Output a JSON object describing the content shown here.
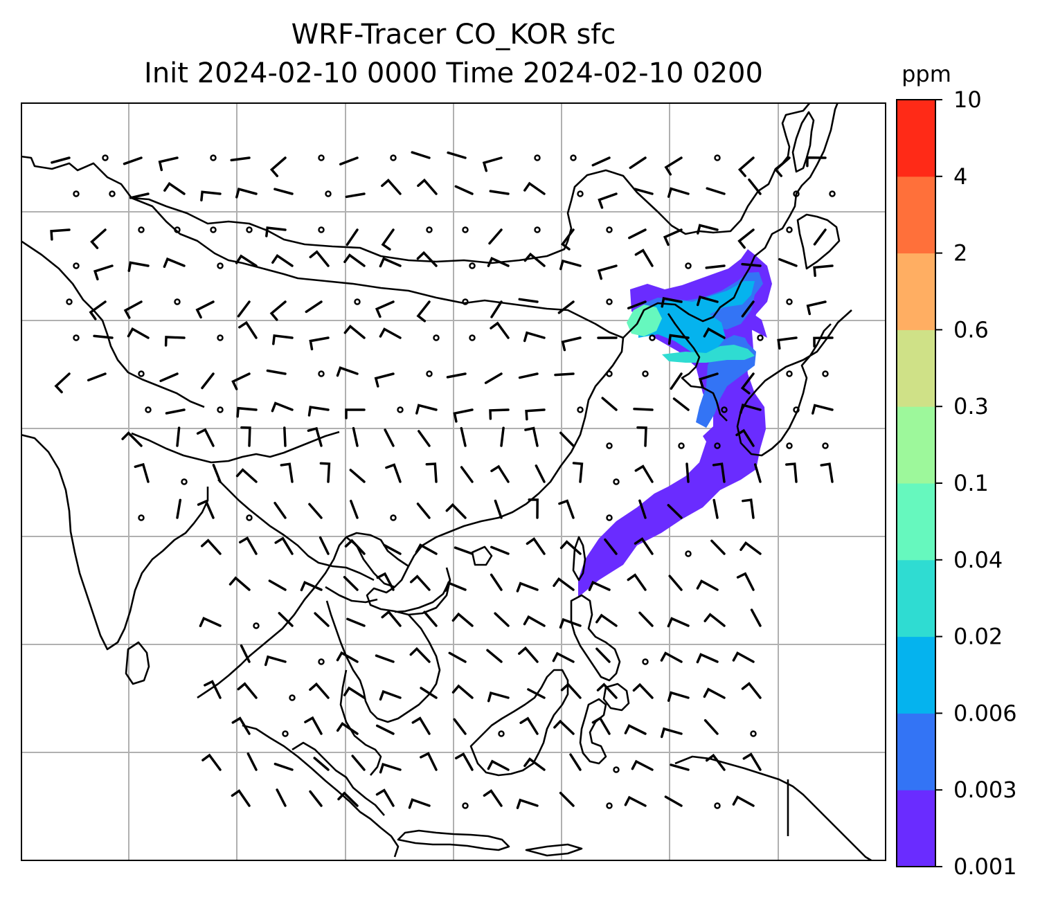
{
  "title": {
    "line1": "WRF-Tracer CO_KOR sfc",
    "line2": "Init 2024-02-10 0000 Time 2024-02-10 0200"
  },
  "colorbar": {
    "unit": "ppm",
    "ticks": [
      "0.001",
      "0.003",
      "0.006",
      "0.02",
      "0.04",
      "0.1",
      "0.3",
      "0.6",
      "2",
      "4",
      "10"
    ],
    "colors": [
      "#6a2cff",
      "#3374f5",
      "#05b3ee",
      "#2fdcd2",
      "#66f8be",
      "#9df89b",
      "#cfe187",
      "#ffae62",
      "#ff703a",
      "#ff2a17"
    ]
  },
  "map": {
    "graticule": "on",
    "land_color": "#ffffff",
    "coast_color": "#000000",
    "plume": {
      "field": "CO_KOR",
      "colors": {
        "outer": "#6a2cff",
        "mid": "#3374f5",
        "core": "#05b3ee",
        "peak": "#66f8be"
      }
    },
    "wind": {
      "symbol": "wind-barb-icon",
      "calm_symbol": "calm-circle-icon"
    }
  }
}
